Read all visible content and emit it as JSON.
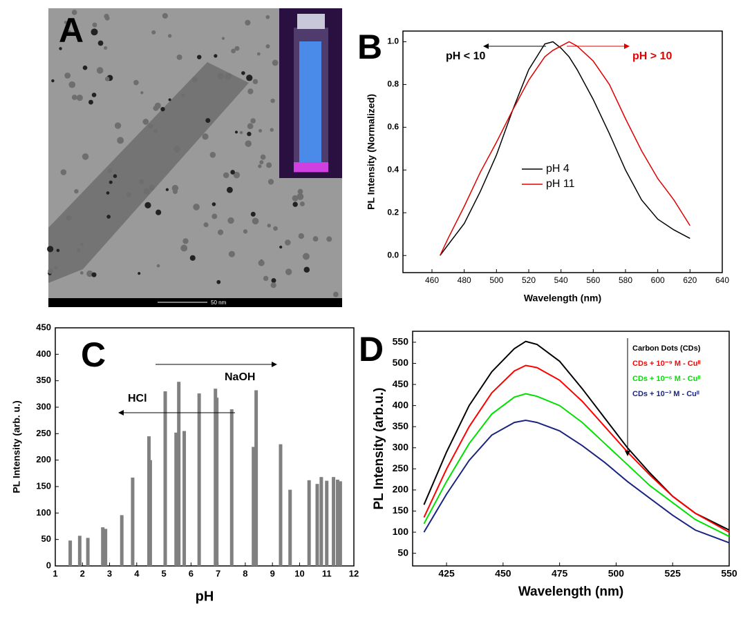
{
  "image_panel": {
    "label": "A",
    "scale_bar": "50 nm"
  },
  "chart_data": [
    {
      "type": "line",
      "panel_label": "B",
      "x_label": "Wavelength (nm)",
      "y_label": "PL Intensity (Normalized)",
      "xlim": [
        442,
        640
      ],
      "ylim": [
        -0.08,
        1.05
      ],
      "xticks": [
        460,
        480,
        500,
        520,
        540,
        560,
        580,
        600,
        620,
        640
      ],
      "yticks": [
        {
          "value": 0,
          "label": "0.0"
        },
        {
          "value": 0.2,
          "label": "0.2"
        },
        {
          "value": 0.4,
          "label": "0.4"
        },
        {
          "value": 0.6,
          "label": "0.6"
        },
        {
          "value": 0.8,
          "label": "0.8"
        },
        {
          "value": 1,
          "label": "1.0"
        }
      ],
      "x": [
        465,
        470,
        480,
        490,
        500,
        510,
        520,
        530,
        535,
        540,
        545,
        550,
        560,
        570,
        580,
        590,
        600,
        610,
        620
      ],
      "series": [
        {
          "name": "pH 4",
          "color": "#000000",
          "values": [
            0.0,
            0.05,
            0.15,
            0.3,
            0.47,
            0.68,
            0.87,
            0.99,
            1.0,
            0.97,
            0.93,
            0.87,
            0.73,
            0.57,
            0.4,
            0.26,
            0.17,
            0.12,
            0.08
          ]
        },
        {
          "name": "pH 11",
          "color": "#e00000",
          "values": [
            0.0,
            0.08,
            0.23,
            0.39,
            0.53,
            0.68,
            0.82,
            0.93,
            0.96,
            0.98,
            1.0,
            0.98,
            0.91,
            0.8,
            0.64,
            0.49,
            0.36,
            0.26,
            0.14
          ]
        }
      ],
      "annotations": [
        {
          "text": "pH < 10",
          "color": "#000000"
        },
        {
          "text": "pH > 10",
          "color": "#e00000"
        }
      ]
    },
    {
      "type": "bar",
      "panel_label": "C",
      "x_label": "pH",
      "y_label": "PL Intensity (arb. u.)",
      "xlim": [
        1,
        12
      ],
      "ylim": [
        0,
        450
      ],
      "xticks": [
        1,
        2,
        3,
        4,
        5,
        6,
        7,
        8,
        9,
        10,
        11,
        12
      ],
      "yticks": [
        0,
        50,
        100,
        150,
        200,
        250,
        300,
        350,
        400,
        450
      ],
      "color": "#808080",
      "x": [
        1.55,
        1.9,
        2.2,
        2.75,
        2.85,
        3.45,
        3.85,
        4.45,
        4.5,
        5.05,
        5.45,
        5.55,
        5.75,
        6.3,
        6.9,
        6.95,
        7.5,
        8.3,
        8.4,
        9.3,
        9.65,
        10.35,
        10.65,
        10.8,
        11.0,
        11.25,
        11.4,
        11.5
      ],
      "values": [
        48,
        57,
        53,
        73,
        70,
        96,
        167,
        245,
        200,
        330,
        252,
        348,
        255,
        326,
        335,
        318,
        296,
        225,
        332,
        230,
        144,
        162,
        155,
        168,
        161,
        168,
        163,
        160
      ],
      "annotations": [
        {
          "text": "HCl",
          "color": "#000000"
        },
        {
          "text": "NaOH",
          "color": "#000000"
        }
      ]
    },
    {
      "type": "line",
      "panel_label": "D",
      "x_label": "Wavelength (nm)",
      "y_label": "PL Intensity (arb.u.)",
      "xlim": [
        410,
        550
      ],
      "ylim": [
        20,
        576
      ],
      "xticks": [
        425,
        450,
        475,
        500,
        525,
        550
      ],
      "yticks": [
        50,
        100,
        150,
        200,
        250,
        300,
        350,
        400,
        450,
        500,
        550
      ],
      "x": [
        415,
        425,
        435,
        445,
        455,
        460,
        465,
        475,
        485,
        495,
        505,
        515,
        525,
        535,
        550
      ],
      "series": [
        {
          "name": "Carbon Dots (CDs)",
          "color": "#000000",
          "values": [
            165,
            290,
            400,
            480,
            535,
            552,
            545,
            505,
            440,
            370,
            300,
            240,
            185,
            145,
            105
          ]
        },
        {
          "name": "CDs + 10⁻⁹ M - Cuᴵᴵ",
          "color": "#ff0000",
          "values": [
            135,
            250,
            350,
            430,
            482,
            495,
            490,
            460,
            410,
            350,
            290,
            235,
            185,
            145,
            100
          ]
        },
        {
          "name": "CDs + 10⁻⁶ M - Cuᴵᴵ",
          "color": "#00e000",
          "values": [
            120,
            220,
            310,
            380,
            420,
            428,
            422,
            400,
            360,
            310,
            260,
            210,
            170,
            130,
            90
          ]
        },
        {
          "name": "CDs + 10⁻³ M - Cuᴵᴵ",
          "color": "#1a237e",
          "values": [
            100,
            190,
            270,
            330,
            360,
            365,
            360,
            340,
            305,
            265,
            220,
            180,
            140,
            105,
            75
          ]
        }
      ]
    }
  ]
}
